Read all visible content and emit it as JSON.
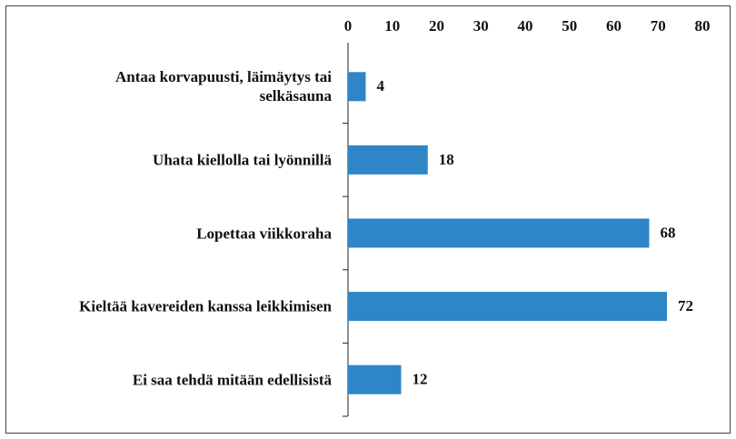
{
  "chart_data": {
    "type": "bar",
    "orientation": "horizontal",
    "categories": [
      "Antaa korvapuusti, läimäytys tai selkäsauna",
      "Uhata kiellolla tai lyönnillä",
      "Lopettaa viikkoraha",
      "Kieltää kavereiden kanssa leikkimisen",
      "Ei saa tehdä mitään edellisistä"
    ],
    "values": [
      4,
      18,
      68,
      72,
      12
    ],
    "color": "#2e86c6",
    "xlim": [
      0,
      80
    ],
    "xticks": [
      0,
      10,
      20,
      30,
      40,
      50,
      60,
      70,
      80
    ],
    "grid": false
  }
}
